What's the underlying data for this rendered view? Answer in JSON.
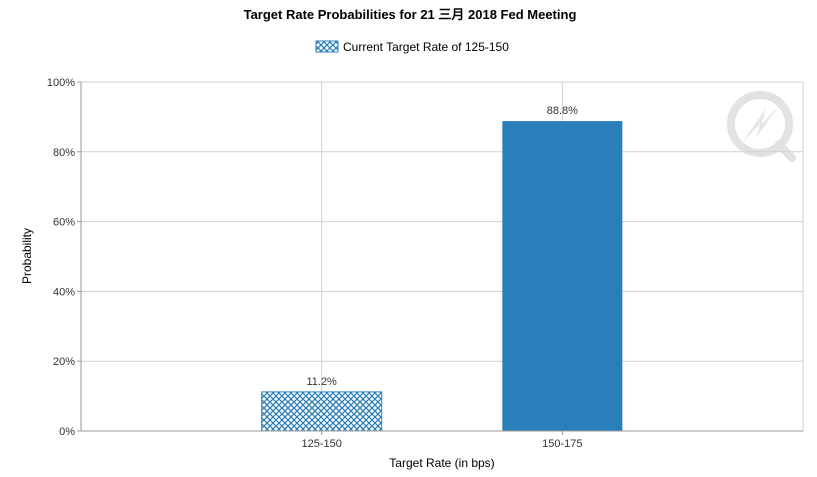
{
  "chart_data": {
    "type": "bar",
    "title": "Target Rate Probabilities for 21 三月  2018 Fed Meeting",
    "legend": {
      "label": "Current Target Rate of 125-150",
      "placement": "top-center"
    },
    "xlabel": "Target Rate (in bps)",
    "ylabel": "Probability",
    "categories": [
      "125-150",
      "150-175"
    ],
    "values": [
      11.2,
      88.8
    ],
    "data_labels": [
      "11.2%",
      "88.8%"
    ],
    "bar_styles": [
      "hatched",
      "solid"
    ],
    "ylim": [
      0,
      100
    ],
    "yticks": [
      0,
      20,
      40,
      60,
      80,
      100
    ],
    "ytick_labels": [
      "0%",
      "20%",
      "40%",
      "60%",
      "80%",
      "100%"
    ],
    "grid": true,
    "colors": {
      "bar": "#2a7fba",
      "hatch_bg": "#ffffff",
      "grid": "#d0d0d0",
      "axis": "#9a9a9a",
      "watermark": "#d8d8d8"
    }
  }
}
